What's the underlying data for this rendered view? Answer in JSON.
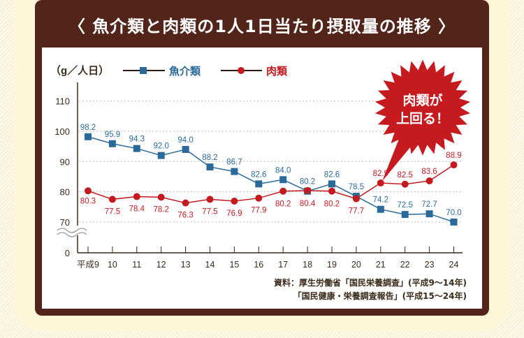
{
  "title": "〈 魚介類と肉類の1人1日当たり摂取量の推移 〉",
  "colors": {
    "frame": "#52241a",
    "fish": "#2a6a9a",
    "meat": "#c41a1f",
    "burst": "#c51b1f",
    "axis": "#3a2a1a",
    "grid": "#bbbbbb"
  },
  "callout": {
    "line1": "肉類が",
    "line2": "上回る！"
  },
  "source": {
    "line1": "資料：厚生労働省「国民栄養調査」(平成9〜14年)",
    "line2": "「国民健康・栄養調査報告」(平成15〜24年)"
  },
  "chart_data": {
    "type": "line",
    "title": "魚介類と肉類の1人1日当たり摂取量の推移",
    "ylabel": "（g／人日）",
    "xlabel": "",
    "categories": [
      "平成9",
      "10",
      "11",
      "12",
      "13",
      "14",
      "15",
      "16",
      "17",
      "18",
      "19",
      "20",
      "21",
      "22",
      "23",
      "24"
    ],
    "y_ticks": [
      "110",
      "100",
      "90",
      "80",
      "70",
      "0"
    ],
    "ylim": [
      70,
      110
    ],
    "axis_break": "between 0 and 70",
    "grid": true,
    "legend_position": "top-left",
    "series": [
      {
        "name": "魚介類",
        "marker": "square",
        "values": [
          98.2,
          95.9,
          94.3,
          92.0,
          94.0,
          88.2,
          86.7,
          82.6,
          84.0,
          80.2,
          82.6,
          78.5,
          74.2,
          72.5,
          72.7,
          70.0
        ],
        "labels": [
          "98.2",
          "95.9",
          "94.3",
          "92.0",
          "94.0",
          "88.2",
          "86.7",
          "82.6",
          "84.0",
          "80.2",
          "82.6",
          "78.5",
          "74.2",
          "72.5",
          "72.7",
          "70.0"
        ]
      },
      {
        "name": "肉類",
        "marker": "circle",
        "values": [
          80.3,
          77.5,
          78.4,
          78.2,
          76.3,
          77.5,
          76.9,
          77.9,
          80.2,
          80.4,
          80.2,
          77.7,
          82.9,
          82.5,
          83.6,
          88.9
        ],
        "labels": [
          "80.3",
          "77.5",
          "78.4",
          "78.2",
          "76.3",
          "77.5",
          "76.9",
          "77.9",
          "80.2",
          "80.4",
          "80.2",
          "77.7",
          "82.9",
          "82.5",
          "83.6",
          "88.9"
        ]
      }
    ],
    "annotation": "肉類が上回る！"
  }
}
